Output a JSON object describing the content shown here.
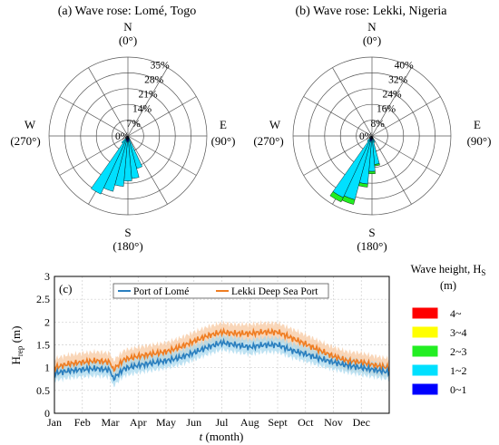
{
  "panels": [
    {
      "title": "(a) Wave rose: Lomé, Togo",
      "directions": {
        "n": "N",
        "n_deg": "(0°)",
        "e": "E",
        "e_deg": "(90°)",
        "s": "S",
        "s_deg": "(180°)",
        "w": "W",
        "w_deg": "(270°)"
      },
      "ring_labels": [
        "0%",
        "7%",
        "14%",
        "21%",
        "28%",
        "35%"
      ],
      "max_percent": 35
    },
    {
      "title": "(b) Wave rose: Lekki, Nigeria",
      "directions": {
        "n": "N",
        "n_deg": "(0°)",
        "e": "E",
        "e_deg": "(90°)",
        "s": "S",
        "s_deg": "(180°)",
        "w": "W",
        "w_deg": "(270°)"
      },
      "ring_labels": [
        "0%",
        "8%",
        "16%",
        "24%",
        "32%",
        "40%"
      ],
      "max_percent": 40
    }
  ],
  "legend": {
    "title_line1": "Wave height, H",
    "title_sub": "S",
    "title_line2": "(m)",
    "items": [
      {
        "label": "4~",
        "color": "#ff0000"
      },
      {
        "label": "3~4",
        "color": "#ffff00"
      },
      {
        "label": "2~3",
        "color": "#22ee22"
      },
      {
        "label": "1~2",
        "color": "#00e0ff"
      },
      {
        "label": "0~1",
        "color": "#0000ff"
      }
    ]
  },
  "ts": {
    "label": "(c)",
    "ylabel_main": "H",
    "ylabel_sub": "rep",
    "ylabel_unit": " (m)",
    "xlabel_italic": "t",
    "xlabel_rest": " (month)",
    "legend": [
      "Port of Lomé",
      "Lekki Deep Sea Port"
    ]
  },
  "chart_data": [
    {
      "type": "wave-rose",
      "title": "(a) Wave rose: Lomé, Togo",
      "unit": "%",
      "rlim": [
        0,
        35
      ],
      "bin_width_deg": 10,
      "height_bins": [
        "0~1",
        "1~2",
        "2~3",
        "3~4",
        "4~"
      ],
      "petals": [
        {
          "direction": 150,
          "values": [
            0.2,
            1.4,
            0.0,
            0,
            0
          ]
        },
        {
          "direction": 160,
          "values": [
            1.0,
            14.0,
            0.0,
            0,
            0
          ]
        },
        {
          "direction": 170,
          "values": [
            2.0,
            17.0,
            0.0,
            0,
            0
          ]
        },
        {
          "direction": 180,
          "values": [
            2.5,
            17.5,
            0.0,
            0,
            0
          ]
        },
        {
          "direction": 190,
          "values": [
            2.5,
            20.0,
            0.0,
            0,
            0
          ]
        },
        {
          "direction": 200,
          "values": [
            2.0,
            23.5,
            0.0,
            0,
            0
          ]
        },
        {
          "direction": 210,
          "values": [
            1.5,
            27.0,
            0.0,
            0,
            0
          ]
        },
        {
          "direction": 220,
          "values": [
            0.5,
            3.5,
            0.0,
            0,
            0
          ]
        }
      ]
    },
    {
      "type": "wave-rose",
      "title": "(b) Wave rose: Lekki, Nigeria",
      "unit": "%",
      "rlim": [
        0,
        40
      ],
      "bin_width_deg": 10,
      "height_bins": [
        "0~1",
        "1~2",
        "2~3",
        "3~4",
        "4~"
      ],
      "petals": [
        {
          "direction": 160,
          "values": [
            0.5,
            3.0,
            0.0,
            0,
            0
          ]
        },
        {
          "direction": 170,
          "values": [
            1.5,
            13.0,
            0.8,
            0,
            0
          ]
        },
        {
          "direction": 180,
          "values": [
            2.0,
            16.0,
            1.2,
            0,
            0
          ]
        },
        {
          "direction": 190,
          "values": [
            2.5,
            22.0,
            1.6,
            0,
            0
          ]
        },
        {
          "direction": 200,
          "values": [
            3.0,
            30.5,
            2.5,
            0,
            0
          ]
        },
        {
          "direction": 210,
          "values": [
            2.0,
            32.5,
            2.5,
            0,
            0
          ]
        },
        {
          "direction": 220,
          "values": [
            0.5,
            3.0,
            0.0,
            0,
            0
          ]
        }
      ]
    },
    {
      "type": "line",
      "label": "(c)",
      "xlabel": "t (month)",
      "ylabel": "Hrep (m)",
      "x_ticks": [
        "Jan",
        "Feb",
        "Mar",
        "Apr",
        "May",
        "Jun",
        "Jul",
        "Aug",
        "Sept",
        "Oct",
        "Nov",
        "Dec"
      ],
      "x_unit": "month",
      "xlim": [
        1,
        13
      ],
      "y_ticks": [
        "0",
        "0.5",
        "1",
        "1.5",
        "2",
        "2.5",
        "3"
      ],
      "ylim": [
        0,
        3
      ],
      "grid": true,
      "legend_position": "top",
      "x": [
        1.0,
        1.5,
        2.0,
        2.5,
        3.0,
        3.1,
        3.5,
        4.0,
        4.5,
        5.0,
        5.5,
        6.0,
        6.5,
        7.0,
        7.5,
        8.0,
        8.5,
        9.0,
        9.5,
        10.0,
        10.5,
        11.0,
        11.5,
        12.0,
        12.5,
        13.0
      ],
      "series": [
        {
          "name": "Port of Lomé",
          "color": "#2a7fbf",
          "band_color": "#a8d8ee",
          "values": [
            0.88,
            0.93,
            0.96,
            0.98,
            0.95,
            0.75,
            0.98,
            1.05,
            1.1,
            1.15,
            1.22,
            1.33,
            1.45,
            1.55,
            1.5,
            1.45,
            1.5,
            1.5,
            1.38,
            1.3,
            1.2,
            1.12,
            1.05,
            1.0,
            0.95,
            0.9
          ],
          "band_half_width": 0.16
        },
        {
          "name": "Lekki Deep Sea Port",
          "color": "#ef7d22",
          "band_color": "#f7c8a0",
          "values": [
            1.0,
            1.08,
            1.12,
            1.15,
            1.12,
            0.95,
            1.18,
            1.25,
            1.3,
            1.35,
            1.45,
            1.58,
            1.7,
            1.78,
            1.75,
            1.75,
            1.78,
            1.78,
            1.65,
            1.52,
            1.38,
            1.25,
            1.15,
            1.12,
            1.05,
            1.0
          ],
          "band_half_width": 0.2
        }
      ]
    }
  ]
}
